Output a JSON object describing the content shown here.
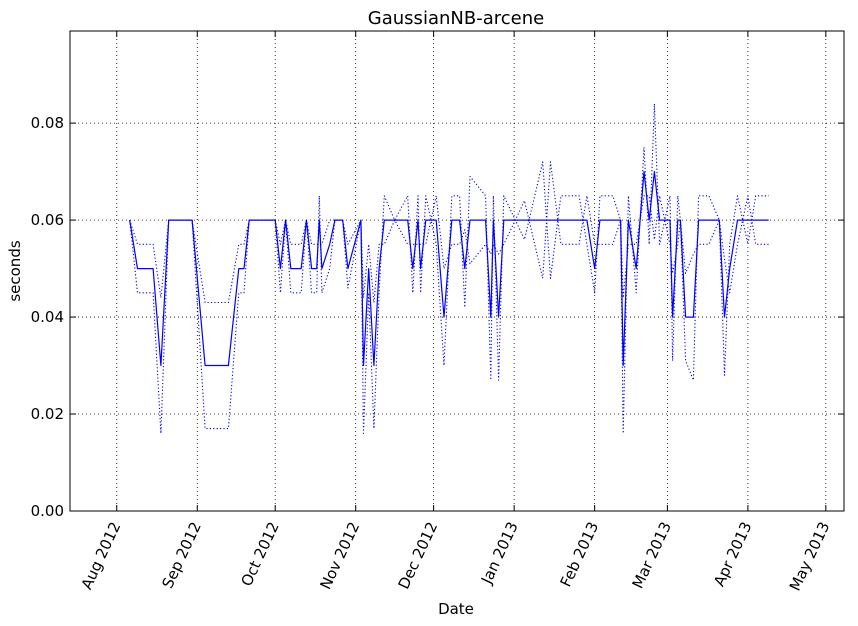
{
  "chart_data": {
    "type": "line",
    "title": "GaussianNB-arcene",
    "xlabel": "Date",
    "ylabel": "seconds",
    "xlim": [
      "2012-07-14",
      "2013-05-08"
    ],
    "ylim": [
      0,
      0.099
    ],
    "grid": true,
    "x_ticks": [
      {
        "date": "2012-08-01",
        "label": "Aug 2012"
      },
      {
        "date": "2012-09-01",
        "label": "Sep 2012"
      },
      {
        "date": "2012-10-01",
        "label": "Oct 2012"
      },
      {
        "date": "2012-11-01",
        "label": "Nov 2012"
      },
      {
        "date": "2012-12-01",
        "label": "Dec 2012"
      },
      {
        "date": "2013-01-01",
        "label": "Jan 2013"
      },
      {
        "date": "2013-02-01",
        "label": "Feb 2013"
      },
      {
        "date": "2013-03-01",
        "label": "Mar 2013"
      },
      {
        "date": "2013-04-01",
        "label": "Apr 2013"
      },
      {
        "date": "2013-05-01",
        "label": "May 2013"
      }
    ],
    "y_ticks": [
      {
        "value": 0.0,
        "label": "0.00"
      },
      {
        "value": 0.02,
        "label": "0.02"
      },
      {
        "value": 0.04,
        "label": "0.04"
      },
      {
        "value": 0.06,
        "label": "0.06"
      },
      {
        "value": 0.08,
        "label": "0.08"
      }
    ],
    "colors": {
      "series": "#0000ff",
      "grid": "#000000"
    },
    "series": [
      {
        "style": "solid",
        "points": [
          [
            "2012-08-06",
            0.06
          ],
          [
            "2012-08-09",
            0.05
          ],
          [
            "2012-08-12",
            0.05
          ],
          [
            "2012-08-15",
            0.05
          ],
          [
            "2012-08-18",
            0.03
          ],
          [
            "2012-08-21",
            0.06
          ],
          [
            "2012-08-24",
            0.06
          ],
          [
            "2012-08-27",
            0.06
          ],
          [
            "2012-08-30",
            0.06
          ],
          [
            "2012-09-04",
            0.03
          ],
          [
            "2012-09-07",
            0.03
          ],
          [
            "2012-09-10",
            0.03
          ],
          [
            "2012-09-13",
            0.03
          ],
          [
            "2012-09-17",
            0.05
          ],
          [
            "2012-09-19",
            0.05
          ],
          [
            "2012-09-21",
            0.06
          ],
          [
            "2012-09-24",
            0.06
          ],
          [
            "2012-09-27",
            0.06
          ],
          [
            "2012-10-01",
            0.06
          ],
          [
            "2012-10-03",
            0.05
          ],
          [
            "2012-10-05",
            0.06
          ],
          [
            "2012-10-07",
            0.05
          ],
          [
            "2012-10-09",
            0.05
          ],
          [
            "2012-10-11",
            0.05
          ],
          [
            "2012-10-13",
            0.06
          ],
          [
            "2012-10-15",
            0.05
          ],
          [
            "2012-10-17",
            0.05
          ],
          [
            "2012-10-18",
            0.06
          ],
          [
            "2012-10-19",
            0.05
          ],
          [
            "2012-10-22",
            0.055
          ],
          [
            "2012-10-24",
            0.06
          ],
          [
            "2012-10-27",
            0.06
          ],
          [
            "2012-10-29",
            0.05
          ],
          [
            "2012-11-03",
            0.06
          ],
          [
            "2012-11-04",
            0.03
          ],
          [
            "2012-11-06",
            0.05
          ],
          [
            "2012-11-08",
            0.03
          ],
          [
            "2012-11-10",
            0.05
          ],
          [
            "2012-11-12",
            0.06
          ],
          [
            "2012-11-16",
            0.06
          ],
          [
            "2012-11-21",
            0.06
          ],
          [
            "2012-11-23",
            0.05
          ],
          [
            "2012-11-25",
            0.06
          ],
          [
            "2012-11-26",
            0.05
          ],
          [
            "2012-11-28",
            0.06
          ],
          [
            "2012-12-02",
            0.06
          ],
          [
            "2012-12-05",
            0.04
          ],
          [
            "2012-12-08",
            0.06
          ],
          [
            "2012-12-11",
            0.06
          ],
          [
            "2012-12-13",
            0.05
          ],
          [
            "2012-12-15",
            0.06
          ],
          [
            "2012-12-18",
            0.06
          ],
          [
            "2012-12-21",
            0.06
          ],
          [
            "2012-12-23",
            0.04
          ],
          [
            "2012-12-24",
            0.06
          ],
          [
            "2012-12-26",
            0.04
          ],
          [
            "2012-12-28",
            0.06
          ],
          [
            "2013-01-05",
            0.06
          ],
          [
            "2013-01-12",
            0.06
          ],
          [
            "2013-01-19",
            0.06
          ],
          [
            "2013-01-26",
            0.06
          ],
          [
            "2013-01-29",
            0.06
          ],
          [
            "2013-02-01",
            0.05
          ],
          [
            "2013-02-03",
            0.06
          ],
          [
            "2013-02-08",
            0.06
          ],
          [
            "2013-02-11",
            0.06
          ],
          [
            "2013-02-12",
            0.03
          ],
          [
            "2013-02-14",
            0.06
          ],
          [
            "2013-02-17",
            0.05
          ],
          [
            "2013-02-20",
            0.07
          ],
          [
            "2013-02-22",
            0.06
          ],
          [
            "2013-02-24",
            0.07
          ],
          [
            "2013-02-26",
            0.06
          ],
          [
            "2013-03-02",
            0.06
          ],
          [
            "2013-03-03",
            0.04
          ],
          [
            "2013-03-05",
            0.06
          ],
          [
            "2013-03-06",
            0.06
          ],
          [
            "2013-03-08",
            0.04
          ],
          [
            "2013-03-11",
            0.04
          ],
          [
            "2013-03-13",
            0.06
          ],
          [
            "2013-03-17",
            0.06
          ],
          [
            "2013-03-21",
            0.06
          ],
          [
            "2013-03-23",
            0.04
          ],
          [
            "2013-03-25",
            0.05
          ],
          [
            "2013-03-28",
            0.06
          ],
          [
            "2013-04-01",
            0.06
          ],
          [
            "2013-04-09",
            0.06
          ]
        ]
      },
      {
        "style": "dotted",
        "points": [
          [
            "2012-08-06",
            0.06
          ],
          [
            "2012-08-09",
            0.045
          ],
          [
            "2012-08-12",
            0.045
          ],
          [
            "2012-08-15",
            0.045
          ],
          [
            "2012-08-18",
            0.016
          ],
          [
            "2012-08-21",
            0.06
          ],
          [
            "2012-08-24",
            0.06
          ],
          [
            "2012-08-27",
            0.06
          ],
          [
            "2012-08-30",
            0.06
          ],
          [
            "2012-09-04",
            0.017
          ],
          [
            "2012-09-07",
            0.017
          ],
          [
            "2012-09-10",
            0.017
          ],
          [
            "2012-09-13",
            0.017
          ],
          [
            "2012-09-17",
            0.045
          ],
          [
            "2012-09-19",
            0.045
          ],
          [
            "2012-09-21",
            0.06
          ],
          [
            "2012-09-24",
            0.06
          ],
          [
            "2012-09-27",
            0.06
          ],
          [
            "2012-10-01",
            0.06
          ],
          [
            "2012-10-03",
            0.045
          ],
          [
            "2012-10-05",
            0.06
          ],
          [
            "2012-10-07",
            0.045
          ],
          [
            "2012-10-09",
            0.045
          ],
          [
            "2012-10-11",
            0.045
          ],
          [
            "2012-10-13",
            0.06
          ],
          [
            "2012-10-15",
            0.045
          ],
          [
            "2012-10-17",
            0.045
          ],
          [
            "2012-10-18",
            0.065
          ],
          [
            "2012-10-19",
            0.045
          ],
          [
            "2012-10-22",
            0.05
          ],
          [
            "2012-10-24",
            0.06
          ],
          [
            "2012-10-27",
            0.06
          ],
          [
            "2012-10-29",
            0.046
          ],
          [
            "2012-11-03",
            0.06
          ],
          [
            "2012-11-04",
            0.016
          ],
          [
            "2012-11-06",
            0.045
          ],
          [
            "2012-11-08",
            0.017
          ],
          [
            "2012-11-10",
            0.045
          ],
          [
            "2012-11-12",
            0.065
          ],
          [
            "2012-11-16",
            0.06
          ],
          [
            "2012-11-21",
            0.065
          ],
          [
            "2012-11-23",
            0.045
          ],
          [
            "2012-11-25",
            0.065
          ],
          [
            "2012-11-26",
            0.045
          ],
          [
            "2012-11-28",
            0.065
          ],
          [
            "2012-12-02",
            0.055
          ],
          [
            "2012-12-05",
            0.03
          ],
          [
            "2012-12-08",
            0.065
          ],
          [
            "2012-12-11",
            0.065
          ],
          [
            "2012-12-13",
            0.042
          ],
          [
            "2012-12-15",
            0.069
          ],
          [
            "2012-12-18",
            0.067
          ],
          [
            "2012-12-21",
            0.065
          ],
          [
            "2012-12-23",
            0.027
          ],
          [
            "2012-12-24",
            0.065
          ],
          [
            "2012-12-26",
            0.027
          ],
          [
            "2012-12-28",
            0.065
          ],
          [
            "2013-01-05",
            0.056
          ],
          [
            "2013-01-12",
            0.072
          ],
          [
            "2013-01-15",
            0.048
          ],
          [
            "2013-01-19",
            0.065
          ],
          [
            "2013-01-26",
            0.065
          ],
          [
            "2013-01-29",
            0.055
          ],
          [
            "2013-02-01",
            0.045
          ],
          [
            "2013-02-03",
            0.065
          ],
          [
            "2013-02-08",
            0.065
          ],
          [
            "2013-02-11",
            0.06
          ],
          [
            "2013-02-12",
            0.016
          ],
          [
            "2013-02-14",
            0.065
          ],
          [
            "2013-02-17",
            0.045
          ],
          [
            "2013-02-20",
            0.075
          ],
          [
            "2013-02-22",
            0.055
          ],
          [
            "2013-02-24",
            0.084
          ],
          [
            "2013-02-26",
            0.055
          ],
          [
            "2013-03-02",
            0.065
          ],
          [
            "2013-03-03",
            0.031
          ],
          [
            "2013-03-05",
            0.065
          ],
          [
            "2013-03-06",
            0.06
          ],
          [
            "2013-03-08",
            0.031
          ],
          [
            "2013-03-11",
            0.027
          ],
          [
            "2013-03-13",
            0.065
          ],
          [
            "2013-03-17",
            0.065
          ],
          [
            "2013-03-21",
            0.06
          ],
          [
            "2013-03-23",
            0.028
          ],
          [
            "2013-03-25",
            0.055
          ],
          [
            "2013-03-28",
            0.065
          ],
          [
            "2013-04-01",
            0.055
          ],
          [
            "2013-04-04",
            0.065
          ],
          [
            "2013-04-09",
            0.065
          ]
        ]
      },
      {
        "style": "dotted",
        "points": [
          [
            "2012-08-06",
            0.06
          ],
          [
            "2012-08-09",
            0.055
          ],
          [
            "2012-08-12",
            0.055
          ],
          [
            "2012-08-15",
            0.055
          ],
          [
            "2012-08-18",
            0.044
          ],
          [
            "2012-08-21",
            0.06
          ],
          [
            "2012-08-24",
            0.06
          ],
          [
            "2012-08-27",
            0.06
          ],
          [
            "2012-08-30",
            0.06
          ],
          [
            "2012-09-04",
            0.043
          ],
          [
            "2012-09-07",
            0.043
          ],
          [
            "2012-09-10",
            0.043
          ],
          [
            "2012-09-13",
            0.043
          ],
          [
            "2012-09-17",
            0.055
          ],
          [
            "2012-09-19",
            0.055
          ],
          [
            "2012-09-21",
            0.06
          ],
          [
            "2012-09-24",
            0.06
          ],
          [
            "2012-09-27",
            0.06
          ],
          [
            "2012-10-01",
            0.06
          ],
          [
            "2012-10-03",
            0.055
          ],
          [
            "2012-10-05",
            0.06
          ],
          [
            "2012-10-07",
            0.055
          ],
          [
            "2012-10-09",
            0.055
          ],
          [
            "2012-10-11",
            0.055
          ],
          [
            "2012-10-13",
            0.06
          ],
          [
            "2012-10-15",
            0.055
          ],
          [
            "2012-10-17",
            0.055
          ],
          [
            "2012-10-18",
            0.055
          ],
          [
            "2012-10-19",
            0.055
          ],
          [
            "2012-10-22",
            0.06
          ],
          [
            "2012-10-24",
            0.06
          ],
          [
            "2012-10-27",
            0.06
          ],
          [
            "2012-10-29",
            0.055
          ],
          [
            "2012-11-03",
            0.06
          ],
          [
            "2012-11-04",
            0.044
          ],
          [
            "2012-11-06",
            0.055
          ],
          [
            "2012-11-08",
            0.043
          ],
          [
            "2012-11-10",
            0.055
          ],
          [
            "2012-11-12",
            0.055
          ],
          [
            "2012-11-16",
            0.06
          ],
          [
            "2012-11-21",
            0.055
          ],
          [
            "2012-11-23",
            0.055
          ],
          [
            "2012-11-25",
            0.055
          ],
          [
            "2012-11-26",
            0.055
          ],
          [
            "2012-11-28",
            0.055
          ],
          [
            "2012-12-02",
            0.065
          ],
          [
            "2012-12-05",
            0.05
          ],
          [
            "2012-12-08",
            0.055
          ],
          [
            "2012-12-11",
            0.055
          ],
          [
            "2012-12-13",
            0.058
          ],
          [
            "2012-12-15",
            0.051
          ],
          [
            "2012-12-18",
            0.053
          ],
          [
            "2012-12-21",
            0.055
          ],
          [
            "2012-12-23",
            0.053
          ],
          [
            "2012-12-24",
            0.055
          ],
          [
            "2012-12-26",
            0.053
          ],
          [
            "2012-12-28",
            0.055
          ],
          [
            "2013-01-05",
            0.064
          ],
          [
            "2013-01-12",
            0.048
          ],
          [
            "2013-01-15",
            0.072
          ],
          [
            "2013-01-19",
            0.055
          ],
          [
            "2013-01-26",
            0.055
          ],
          [
            "2013-01-29",
            0.065
          ],
          [
            "2013-02-01",
            0.055
          ],
          [
            "2013-02-03",
            0.055
          ],
          [
            "2013-02-08",
            0.055
          ],
          [
            "2013-02-11",
            0.06
          ],
          [
            "2013-02-12",
            0.044
          ],
          [
            "2013-02-14",
            0.055
          ],
          [
            "2013-02-17",
            0.055
          ],
          [
            "2013-02-20",
            0.065
          ],
          [
            "2013-02-22",
            0.065
          ],
          [
            "2013-02-24",
            0.056
          ],
          [
            "2013-02-26",
            0.065
          ],
          [
            "2013-03-02",
            0.055
          ],
          [
            "2013-03-03",
            0.049
          ],
          [
            "2013-03-05",
            0.055
          ],
          [
            "2013-03-06",
            0.06
          ],
          [
            "2013-03-08",
            0.049
          ],
          [
            "2013-03-11",
            0.053
          ],
          [
            "2013-03-13",
            0.055
          ],
          [
            "2013-03-17",
            0.055
          ],
          [
            "2013-03-21",
            0.06
          ],
          [
            "2013-03-23",
            0.052
          ],
          [
            "2013-03-25",
            0.045
          ],
          [
            "2013-03-28",
            0.055
          ],
          [
            "2013-04-01",
            0.065
          ],
          [
            "2013-04-04",
            0.055
          ],
          [
            "2013-04-09",
            0.055
          ]
        ]
      }
    ]
  }
}
